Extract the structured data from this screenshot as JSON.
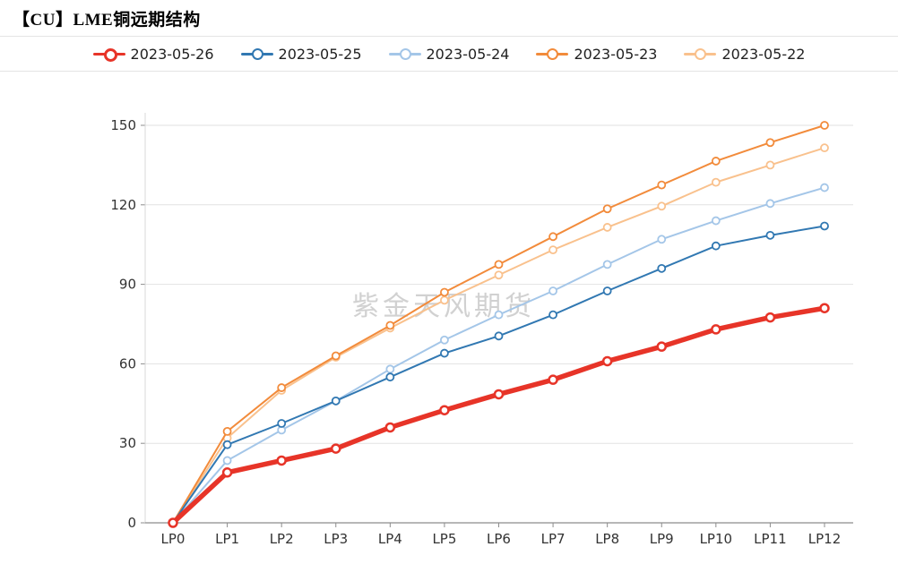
{
  "page": {
    "title": "【CU】LME铜远期结构",
    "watermark": "紫金天风期货"
  },
  "chart_data": {
    "type": "line",
    "title": "【CU】LME铜远期结构",
    "xlabel": "",
    "ylabel": "",
    "categories": [
      "LP0",
      "LP1",
      "LP2",
      "LP3",
      "LP4",
      "LP5",
      "LP6",
      "LP7",
      "LP8",
      "LP9",
      "LP10",
      "LP11",
      "LP12"
    ],
    "y_ticks": [
      0,
      30,
      60,
      90,
      120,
      150
    ],
    "ylim": [
      0,
      150
    ],
    "grid": true,
    "legend_position": "top",
    "colors": {
      "grid": "#e2e2e2",
      "axis": "#8c8c8c",
      "tick_text": "#333333",
      "watermark": "#c9c9c9"
    },
    "series": [
      {
        "name": "2023-05-26",
        "color": "#e73428",
        "line_width": 5.5,
        "marker_r": 4.5,
        "values": [
          0,
          19,
          23.5,
          28,
          36,
          42.5,
          48.5,
          54,
          61,
          66.5,
          73,
          77.5,
          81
        ]
      },
      {
        "name": "2023-05-25",
        "color": "#3178b2",
        "line_width": 2,
        "marker_r": 4,
        "values": [
          0,
          29.5,
          37.5,
          46,
          55,
          64,
          70.5,
          78.5,
          87.5,
          96,
          104.5,
          108.5,
          112
        ]
      },
      {
        "name": "2023-05-24",
        "color": "#a4c6e8",
        "line_width": 2,
        "marker_r": 4,
        "values": [
          0,
          23.5,
          35,
          46,
          58,
          69,
          78.5,
          87.5,
          97.5,
          107,
          114,
          120.5,
          126.5
        ]
      },
      {
        "name": "2023-05-23",
        "color": "#f28b3b",
        "line_width": 2,
        "marker_r": 4,
        "values": [
          0,
          34.5,
          51,
          63,
          74.5,
          87,
          97.5,
          108,
          118.5,
          127.5,
          136.5,
          143.5,
          150
        ]
      },
      {
        "name": "2023-05-22",
        "color": "#f9c18d",
        "line_width": 2,
        "marker_r": 4,
        "values": [
          0,
          32,
          50,
          62.5,
          73.5,
          84,
          93.5,
          103,
          111.5,
          119.5,
          128.5,
          135,
          141.5
        ]
      }
    ]
  }
}
